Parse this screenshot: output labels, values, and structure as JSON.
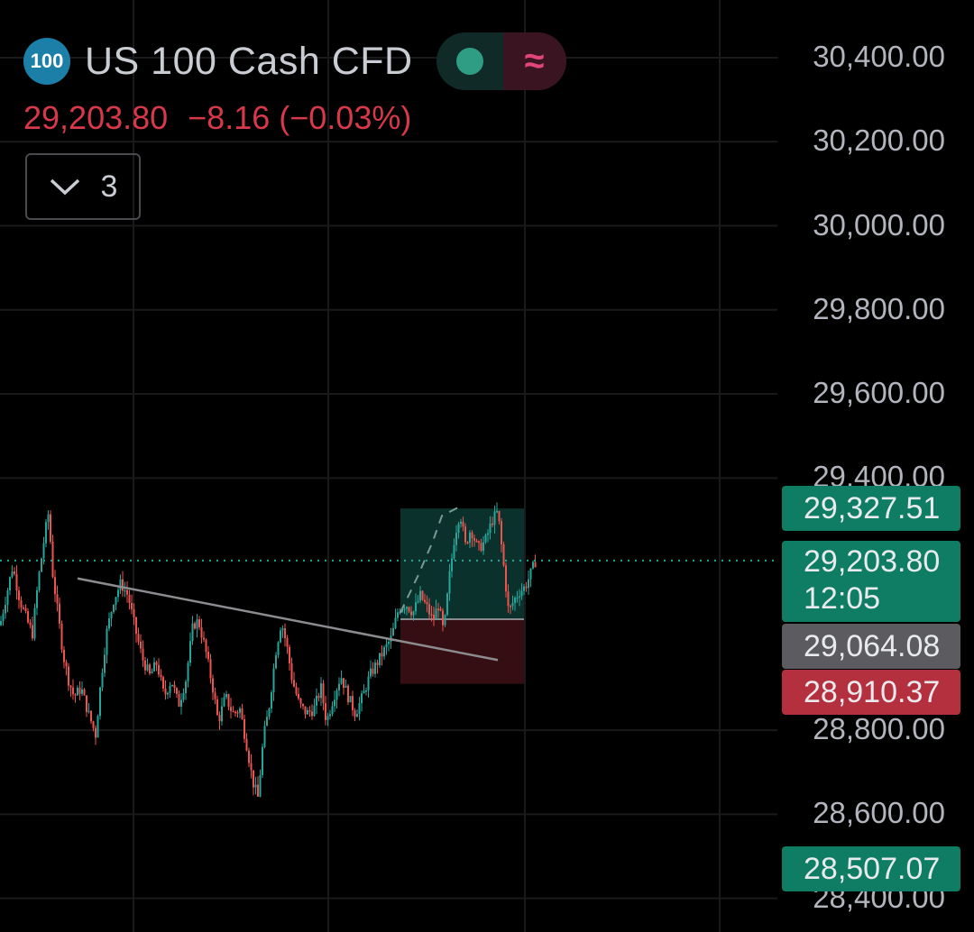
{
  "header": {
    "symbol_badge": "100",
    "title": "US 100 Cash CFD",
    "market_status_icon": "green-dot-icon",
    "indicator_icon": "approx-icon",
    "indicator_glyph": "≈",
    "last_price": "29,203.80",
    "change": "−8.16",
    "change_percent": "(−0.03%)",
    "indicators_toggle_count": "3"
  },
  "price_tags": {
    "take_profit": "29,327.51",
    "current_price": "29,203.80",
    "countdown": "12:05",
    "entry": "29,064.08",
    "stop_loss": "28,910.37",
    "lower": "28,507.07"
  },
  "colors": {
    "up": "#26a69a",
    "down": "#ef5350",
    "tag_green": "#0f7d64",
    "tag_red": "#b5303f",
    "tag_gray": "#5c5c60",
    "trendline": "#8c8c90"
  },
  "chart_data": {
    "type": "candlestick",
    "title": "US 100 Cash CFD",
    "y_tick_labels": [
      "30,400.00",
      "30,200.00",
      "30,000.00",
      "29,800.00",
      "29,600.00",
      "29,400.00",
      "28,800.00",
      "28,600.00",
      "28,400.00"
    ],
    "y_ticks": [
      30400,
      30200,
      30000,
      29800,
      29600,
      29400,
      28800,
      28600,
      28400
    ],
    "ylim": [
      28365,
      30460
    ],
    "grid": true,
    "last_price": 29203.8,
    "path_points": [
      [
        0,
        29050
      ],
      [
        6,
        29110
      ],
      [
        14,
        29190
      ],
      [
        22,
        29110
      ],
      [
        30,
        29060
      ],
      [
        36,
        29030
      ],
      [
        42,
        29150
      ],
      [
        50,
        29270
      ],
      [
        54,
        29320
      ],
      [
        58,
        29180
      ],
      [
        64,
        29080
      ],
      [
        70,
        28980
      ],
      [
        76,
        28920
      ],
      [
        82,
        28880
      ],
      [
        90,
        28900
      ],
      [
        98,
        28840
      ],
      [
        106,
        28790
      ],
      [
        112,
        28920
      ],
      [
        118,
        29030
      ],
      [
        126,
        29110
      ],
      [
        134,
        29150
      ],
      [
        142,
        29120
      ],
      [
        150,
        29040
      ],
      [
        158,
        28970
      ],
      [
        166,
        28930
      ],
      [
        174,
        28960
      ],
      [
        182,
        28880
      ],
      [
        190,
        28920
      ],
      [
        198,
        28860
      ],
      [
        206,
        28920
      ],
      [
        214,
        29050
      ],
      [
        220,
        29060
      ],
      [
        228,
        28990
      ],
      [
        236,
        28900
      ],
      [
        242,
        28820
      ],
      [
        250,
        28880
      ],
      [
        258,
        28840
      ],
      [
        266,
        28850
      ],
      [
        274,
        28760
      ],
      [
        280,
        28680
      ],
      [
        286,
        28640
      ],
      [
        292,
        28780
      ],
      [
        298,
        28850
      ],
      [
        306,
        28990
      ],
      [
        312,
        29060
      ],
      [
        318,
        29000
      ],
      [
        324,
        28920
      ],
      [
        332,
        28860
      ],
      [
        340,
        28840
      ],
      [
        348,
        28850
      ],
      [
        356,
        28900
      ],
      [
        362,
        28820
      ],
      [
        370,
        28880
      ],
      [
        378,
        28930
      ],
      [
        386,
        28880
      ],
      [
        394,
        28840
      ],
      [
        402,
        28880
      ],
      [
        410,
        28930
      ],
      [
        418,
        28960
      ],
      [
        426,
        28990
      ],
      [
        434,
        29020
      ],
      [
        442,
        29090
      ],
      [
        450,
        29100
      ],
      [
        458,
        29080
      ],
      [
        466,
        29120
      ],
      [
        474,
        29090
      ],
      [
        480,
        29060
      ],
      [
        486,
        29100
      ],
      [
        492,
        29030
      ],
      [
        498,
        29160
      ],
      [
        504,
        29260
      ],
      [
        510,
        29320
      ],
      [
        516,
        29240
      ],
      [
        522,
        29280
      ],
      [
        530,
        29230
      ],
      [
        538,
        29250
      ],
      [
        546,
        29300
      ],
      [
        552,
        29320
      ],
      [
        558,
        29200
      ],
      [
        564,
        29080
      ],
      [
        570,
        29110
      ],
      [
        576,
        29130
      ],
      [
        582,
        29140
      ],
      [
        588,
        29170
      ],
      [
        594,
        29204
      ]
    ],
    "trendline": [
      [
        86,
        29161
      ],
      [
        552,
        28967
      ]
    ],
    "projection_path": [
      [
        444,
        29080
      ],
      [
        464,
        29170
      ],
      [
        480,
        29250
      ],
      [
        490,
        29310
      ],
      [
        508,
        29330
      ]
    ],
    "position": {
      "x_start": 444,
      "x_end": 581,
      "entry": 29064.08,
      "take_profit": 29327.51,
      "stop_loss": 28910.37
    }
  }
}
